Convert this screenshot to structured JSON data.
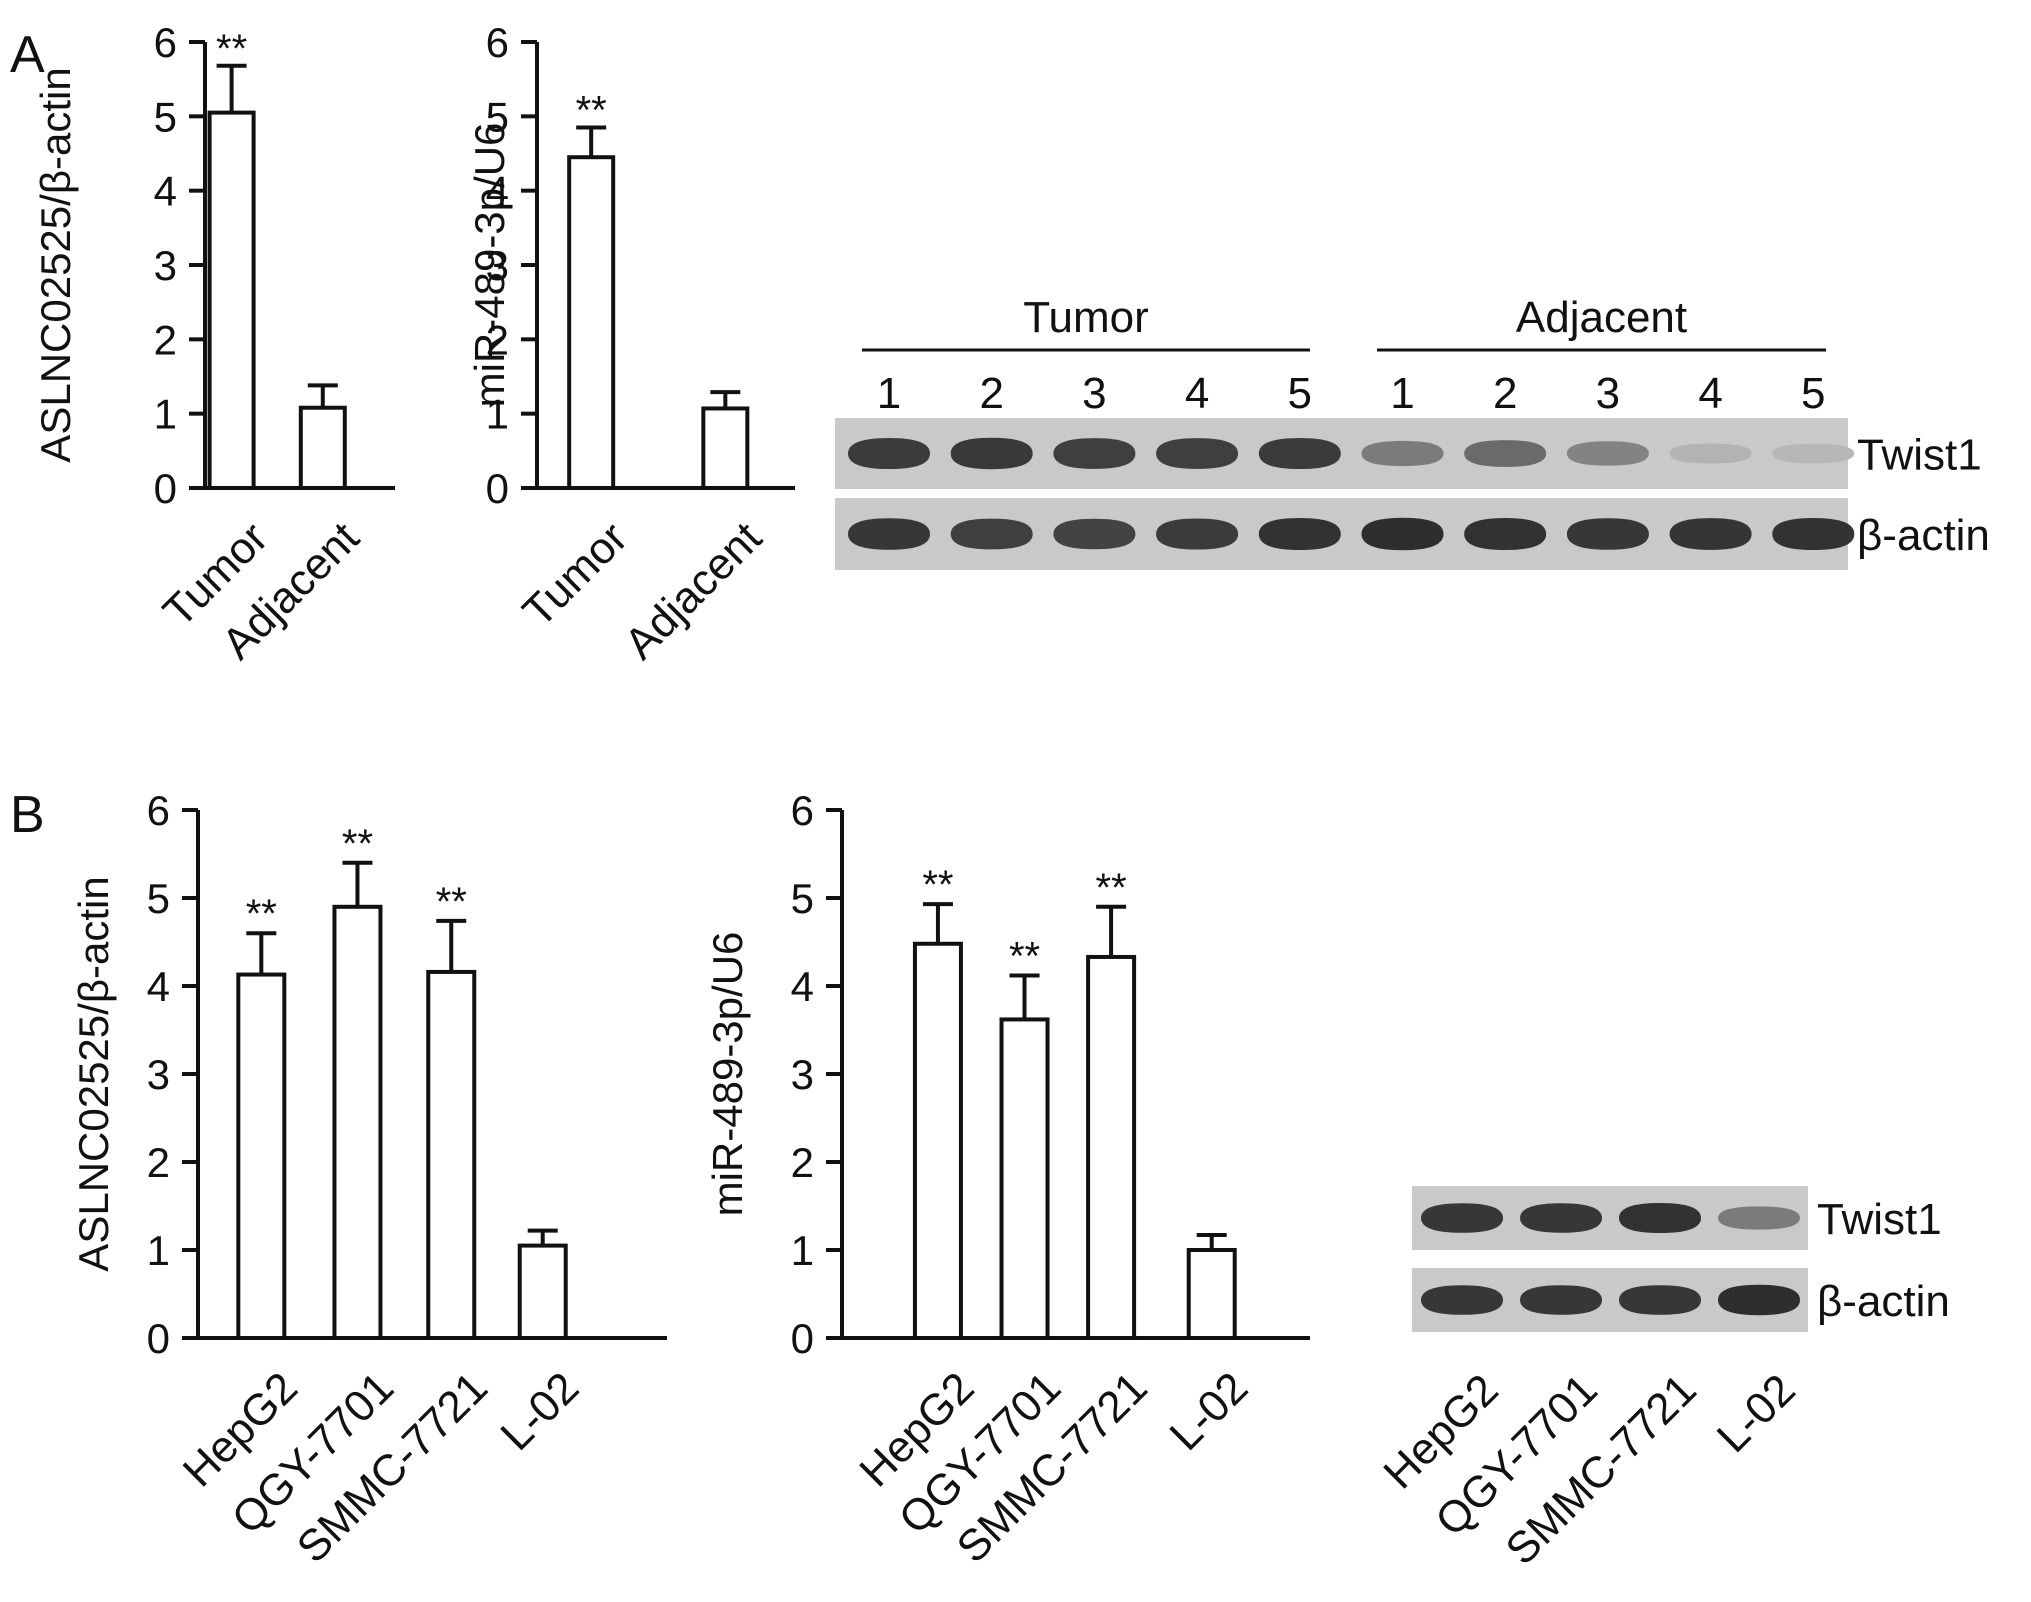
{
  "panels": [
    {
      "letter": "A"
    },
    {
      "letter": "B"
    }
  ],
  "blots": [
    {
      "group_labels": [
        "Tumor",
        "Adjacent"
      ],
      "lane_numbers": [
        "1",
        "2",
        "3",
        "4",
        "5",
        "1",
        "2",
        "3",
        "4",
        "5"
      ],
      "rows": [
        {
          "label": "Twist1",
          "intensity": [
            0.82,
            0.84,
            0.8,
            0.8,
            0.82,
            0.45,
            0.55,
            0.4,
            0.12,
            0.1
          ]
        },
        {
          "label": "β-actin",
          "intensity": [
            0.85,
            0.8,
            0.78,
            0.82,
            0.88,
            0.9,
            0.88,
            0.85,
            0.86,
            0.88
          ]
        }
      ],
      "lane_labels": []
    },
    {
      "group_labels": [],
      "lane_numbers": [],
      "rows": [
        {
          "label": "Twist1",
          "intensity": [
            0.85,
            0.85,
            0.88,
            0.45
          ]
        },
        {
          "label": "β-actin",
          "intensity": [
            0.85,
            0.85,
            0.85,
            0.9
          ]
        }
      ],
      "lane_labels": [
        "HepG2",
        "QGY-7701",
        "SMMC-7721",
        "L-02"
      ]
    }
  ],
  "chart_data": [
    {
      "type": "bar",
      "panel": "A",
      "categories": [
        "Tumor",
        "Adjacent"
      ],
      "values": [
        5.05,
        1.08
      ],
      "errors": [
        0.63,
        0.3
      ],
      "significance": [
        "**",
        ""
      ],
      "ylabel": "ASLNC02525/β-actin",
      "ylim": [
        0,
        6
      ],
      "yticks": [
        "0",
        "1",
        "2",
        "3",
        "4",
        "5",
        "6"
      ]
    },
    {
      "type": "bar",
      "panel": "A",
      "categories": [
        "Tumor",
        "Adjacent"
      ],
      "values": [
        4.45,
        1.07
      ],
      "errors": [
        0.4,
        0.22
      ],
      "significance": [
        "**",
        ""
      ],
      "ylabel": "miR-489-3p/U6",
      "ylim": [
        0,
        6
      ],
      "yticks": [
        "0",
        "1",
        "2",
        "3",
        "4",
        "5",
        "6"
      ]
    },
    {
      "type": "bar",
      "panel": "B",
      "categories": [
        "HepG2",
        "QGY-7701",
        "SMMC-7721",
        "L-02"
      ],
      "values": [
        4.13,
        4.9,
        4.16,
        1.05
      ],
      "errors": [
        0.47,
        0.5,
        0.58,
        0.17
      ],
      "significance": [
        "**",
        "**",
        "**",
        ""
      ],
      "ylabel": "ASLNC02525/β-actin",
      "ylim": [
        0,
        6
      ],
      "yticks": [
        "0",
        "1",
        "2",
        "3",
        "4",
        "5",
        "6"
      ]
    },
    {
      "type": "bar",
      "panel": "B",
      "categories": [
        "HepG2",
        "QGY-7701",
        "SMMC-7721",
        "L-02"
      ],
      "values": [
        4.48,
        3.62,
        4.33,
        1.0
      ],
      "errors": [
        0.45,
        0.5,
        0.57,
        0.17
      ],
      "significance": [
        "**",
        "**",
        "**",
        ""
      ],
      "ylabel": "miR-489-3p/U6",
      "ylim": [
        0,
        6
      ],
      "yticks": [
        "0",
        "1",
        "2",
        "3",
        "4",
        "5",
        "6"
      ]
    }
  ]
}
